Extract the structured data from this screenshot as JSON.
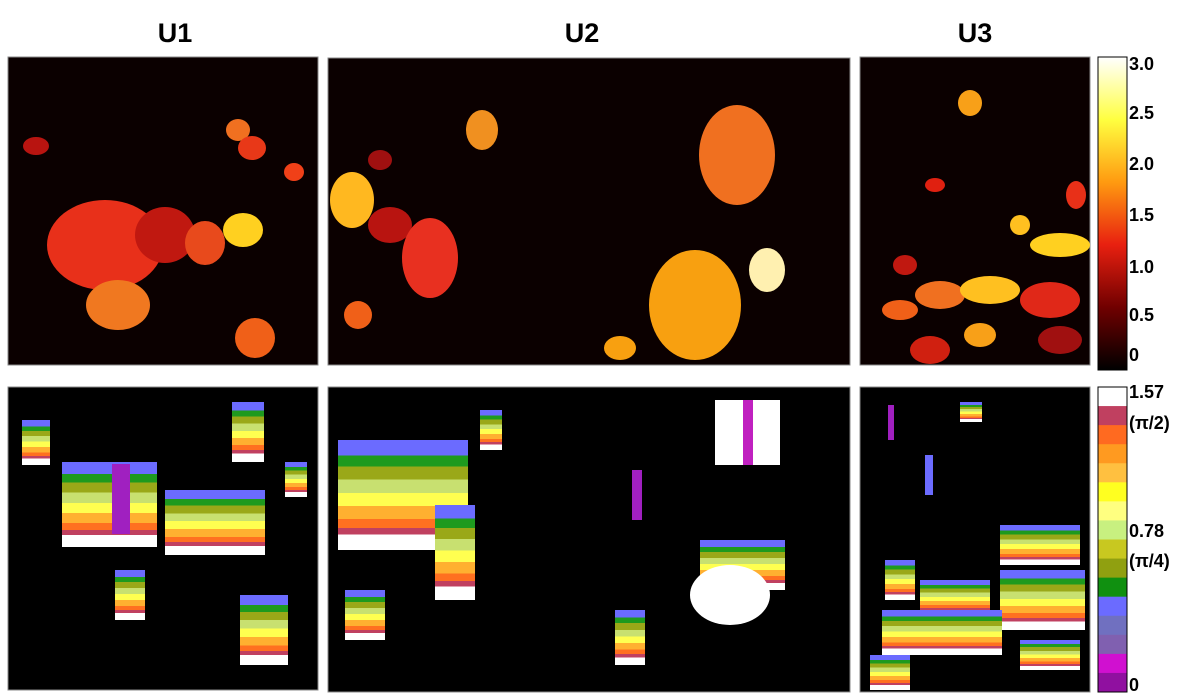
{
  "titles": [
    "U1",
    "U2",
    "U3"
  ],
  "colorbars": [
    {
      "labels": [
        "3.0",
        "2.5",
        "2.0",
        "1.5",
        "1.0",
        "0.5",
        "0"
      ]
    },
    {
      "labels": [
        "1.57",
        "(π/2)",
        "0.78",
        "(π/4)",
        "0"
      ]
    }
  ]
}
